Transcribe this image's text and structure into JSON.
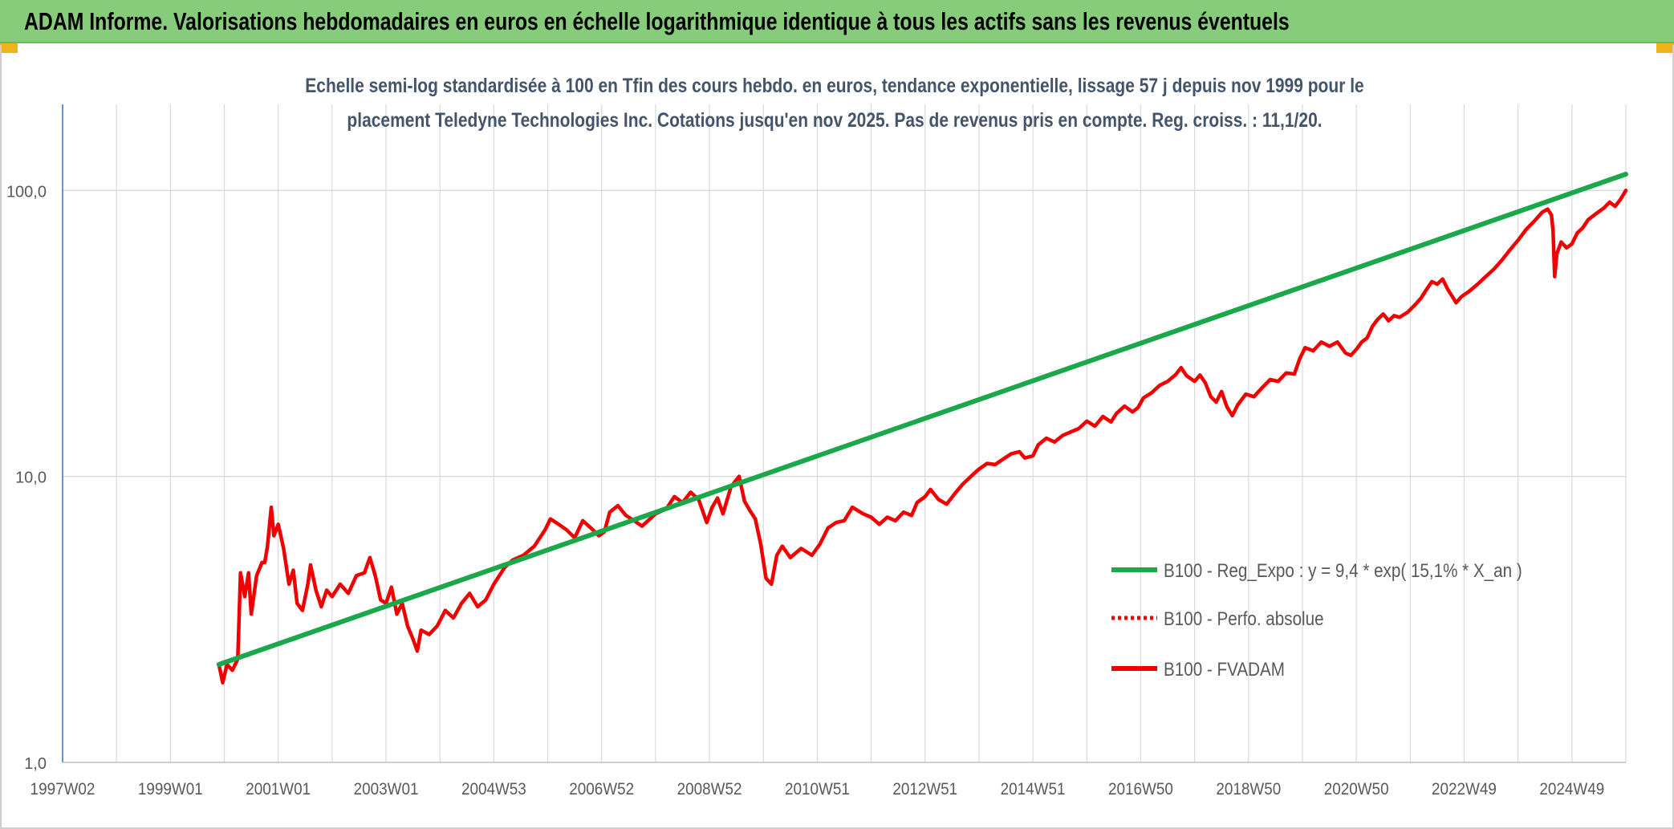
{
  "header": {
    "title": "ADAM Informe. Valorisations hebdomadaires en euros en échelle logarithmique identique à tous les actifs sans les revenus éventuels"
  },
  "colors": {
    "banner": "#86cc7a",
    "corner": "#f2b21b",
    "trend": "#1aa84a",
    "fvadam": "#f00000",
    "perfo": "#f00000",
    "grid": "#d9d9d9",
    "axis": "#4472c4"
  },
  "chart_data": {
    "type": "line",
    "title_lines": [
      "Echelle semi-log standardisée à 100 en Tfin des cours hebdo. en euros, tendance exponentielle, lissage 57 j depuis nov 1999 pour le",
      "placement Teledyne Technologies Inc. Cotations jusqu'en nov 2025. Pas de revenus pris en compte. Reg. croiss. : 11,1/20."
    ],
    "y_scale": "log",
    "ylim": [
      1,
      200
    ],
    "y_ticks": [
      {
        "value": 1,
        "label": "1,0"
      },
      {
        "value": 10,
        "label": "10,0"
      },
      {
        "value": 100,
        "label": "100,0"
      }
    ],
    "xlim": [
      1997.0,
      2026.0
    ],
    "x_ticks": [
      {
        "year": 1997.0,
        "label": "1997W02"
      },
      {
        "year": 1999.0,
        "label": "1999W01"
      },
      {
        "year": 2001.0,
        "label": "2001W01"
      },
      {
        "year": 2003.0,
        "label": "2003W01"
      },
      {
        "year": 2005.0,
        "label": "2004W53"
      },
      {
        "year": 2007.0,
        "label": "2006W52"
      },
      {
        "year": 2009.0,
        "label": "2008W52"
      },
      {
        "year": 2011.0,
        "label": "2010W51"
      },
      {
        "year": 2013.0,
        "label": "2012W51"
      },
      {
        "year": 2015.0,
        "label": "2014W51"
      },
      {
        "year": 2017.0,
        "label": "2016W50"
      },
      {
        "year": 2019.0,
        "label": "2018W50"
      },
      {
        "year": 2021.0,
        "label": "2020W50"
      },
      {
        "year": 2023.0,
        "label": "2022W49"
      },
      {
        "year": 2025.0,
        "label": "2024W49"
      }
    ],
    "legend_position": "right",
    "series": [
      {
        "name": "B100 - Reg_Expo : y = 9,4 * exp( 15,1% *  X_an )",
        "style": "solid",
        "color": "#1aa84a",
        "points": [
          [
            1999.9,
            2.2
          ],
          [
            2026.0,
            114
          ]
        ]
      },
      {
        "name": "B100 - Perfo. absolue",
        "style": "dotted",
        "color": "#f00000",
        "points": []
      },
      {
        "name": "B100 - FVADAM",
        "style": "solid",
        "color": "#f00000",
        "points": [
          [
            1999.9,
            2.2
          ],
          [
            1999.97,
            1.9
          ],
          [
            2000.05,
            2.2
          ],
          [
            2000.15,
            2.1
          ],
          [
            2000.25,
            2.3
          ],
          [
            2000.3,
            4.6
          ],
          [
            2000.38,
            3.8
          ],
          [
            2000.45,
            4.6
          ],
          [
            2000.5,
            3.3
          ],
          [
            2000.6,
            4.5
          ],
          [
            2000.7,
            5.0
          ],
          [
            2000.75,
            5.0
          ],
          [
            2000.8,
            5.7
          ],
          [
            2000.87,
            7.8
          ],
          [
            2000.92,
            6.2
          ],
          [
            2001.0,
            6.8
          ],
          [
            2001.1,
            5.6
          ],
          [
            2001.2,
            4.2
          ],
          [
            2001.28,
            4.7
          ],
          [
            2001.35,
            3.6
          ],
          [
            2001.45,
            3.4
          ],
          [
            2001.55,
            4.2
          ],
          [
            2001.6,
            4.9
          ],
          [
            2001.7,
            4.0
          ],
          [
            2001.8,
            3.5
          ],
          [
            2001.9,
            4.0
          ],
          [
            2002.0,
            3.8
          ],
          [
            2002.15,
            4.2
          ],
          [
            2002.3,
            3.9
          ],
          [
            2002.45,
            4.5
          ],
          [
            2002.6,
            4.6
          ],
          [
            2002.7,
            5.2
          ],
          [
            2002.8,
            4.5
          ],
          [
            2002.9,
            3.7
          ],
          [
            2003.0,
            3.6
          ],
          [
            2003.1,
            4.1
          ],
          [
            2003.2,
            3.3
          ],
          [
            2003.3,
            3.6
          ],
          [
            2003.4,
            3.0
          ],
          [
            2003.5,
            2.7
          ],
          [
            2003.58,
            2.45
          ],
          [
            2003.65,
            2.9
          ],
          [
            2003.8,
            2.8
          ],
          [
            2003.95,
            3.0
          ],
          [
            2004.1,
            3.4
          ],
          [
            2004.25,
            3.2
          ],
          [
            2004.4,
            3.6
          ],
          [
            2004.55,
            3.9
          ],
          [
            2004.7,
            3.5
          ],
          [
            2004.85,
            3.7
          ],
          [
            2005.0,
            4.2
          ],
          [
            2005.2,
            4.8
          ],
          [
            2005.35,
            5.1
          ],
          [
            2005.55,
            5.3
          ],
          [
            2005.75,
            5.7
          ],
          [
            2005.95,
            6.5
          ],
          [
            2006.05,
            7.1
          ],
          [
            2006.2,
            6.8
          ],
          [
            2006.35,
            6.5
          ],
          [
            2006.5,
            6.1
          ],
          [
            2006.65,
            7.0
          ],
          [
            2006.8,
            6.6
          ],
          [
            2006.95,
            6.2
          ],
          [
            2007.05,
            6.4
          ],
          [
            2007.15,
            7.5
          ],
          [
            2007.3,
            7.9
          ],
          [
            2007.45,
            7.3
          ],
          [
            2007.6,
            7.0
          ],
          [
            2007.75,
            6.7
          ],
          [
            2008.0,
            7.4
          ],
          [
            2008.2,
            7.7
          ],
          [
            2008.35,
            8.5
          ],
          [
            2008.5,
            8.1
          ],
          [
            2008.65,
            8.8
          ],
          [
            2008.8,
            8.3
          ],
          [
            2008.95,
            6.9
          ],
          [
            2009.05,
            7.8
          ],
          [
            2009.15,
            8.4
          ],
          [
            2009.25,
            7.4
          ],
          [
            2009.4,
            9.2
          ],
          [
            2009.55,
            10.0
          ],
          [
            2009.65,
            8.2
          ],
          [
            2009.75,
            7.6
          ],
          [
            2009.85,
            7.1
          ],
          [
            2009.95,
            5.8
          ],
          [
            2010.05,
            4.4
          ],
          [
            2010.15,
            4.2
          ],
          [
            2010.25,
            5.3
          ],
          [
            2010.35,
            5.7
          ],
          [
            2010.5,
            5.2
          ],
          [
            2010.7,
            5.6
          ],
          [
            2010.9,
            5.3
          ],
          [
            2011.05,
            5.8
          ],
          [
            2011.2,
            6.6
          ],
          [
            2011.35,
            6.9
          ],
          [
            2011.5,
            7.0
          ],
          [
            2011.65,
            7.8
          ],
          [
            2011.85,
            7.4
          ],
          [
            2012.0,
            7.2
          ],
          [
            2012.15,
            6.8
          ],
          [
            2012.3,
            7.2
          ],
          [
            2012.45,
            7.0
          ],
          [
            2012.6,
            7.5
          ],
          [
            2012.75,
            7.3
          ],
          [
            2012.85,
            8.1
          ],
          [
            2013.0,
            8.5
          ],
          [
            2013.1,
            9.0
          ],
          [
            2013.25,
            8.3
          ],
          [
            2013.4,
            8.0
          ],
          [
            2013.55,
            8.7
          ],
          [
            2013.7,
            9.4
          ],
          [
            2013.85,
            10.0
          ],
          [
            2014.0,
            10.6
          ],
          [
            2014.15,
            11.1
          ],
          [
            2014.3,
            11.0
          ],
          [
            2014.45,
            11.5
          ],
          [
            2014.6,
            12.0
          ],
          [
            2014.75,
            12.2
          ],
          [
            2014.85,
            11.6
          ],
          [
            2015.0,
            11.8
          ],
          [
            2015.1,
            12.9
          ],
          [
            2015.25,
            13.6
          ],
          [
            2015.4,
            13.2
          ],
          [
            2015.55,
            13.9
          ],
          [
            2015.7,
            14.3
          ],
          [
            2015.85,
            14.7
          ],
          [
            2016.0,
            15.6
          ],
          [
            2016.15,
            15.0
          ],
          [
            2016.3,
            16.2
          ],
          [
            2016.45,
            15.5
          ],
          [
            2016.55,
            16.6
          ],
          [
            2016.7,
            17.6
          ],
          [
            2016.85,
            16.8
          ],
          [
            2016.95,
            17.4
          ],
          [
            2017.05,
            18.8
          ],
          [
            2017.2,
            19.6
          ],
          [
            2017.35,
            20.8
          ],
          [
            2017.5,
            21.5
          ],
          [
            2017.65,
            22.7
          ],
          [
            2017.75,
            24.0
          ],
          [
            2017.85,
            22.5
          ],
          [
            2018.0,
            21.5
          ],
          [
            2018.1,
            22.6
          ],
          [
            2018.2,
            21.2
          ],
          [
            2018.3,
            19.0
          ],
          [
            2018.4,
            18.2
          ],
          [
            2018.5,
            19.8
          ],
          [
            2018.6,
            17.5
          ],
          [
            2018.7,
            16.3
          ],
          [
            2018.8,
            17.8
          ],
          [
            2018.95,
            19.4
          ],
          [
            2019.1,
            19.0
          ],
          [
            2019.25,
            20.4
          ],
          [
            2019.4,
            21.8
          ],
          [
            2019.55,
            21.5
          ],
          [
            2019.7,
            23.0
          ],
          [
            2019.85,
            22.8
          ],
          [
            2019.95,
            25.8
          ],
          [
            2020.05,
            28.2
          ],
          [
            2020.2,
            27.5
          ],
          [
            2020.35,
            29.5
          ],
          [
            2020.5,
            28.5
          ],
          [
            2020.65,
            29.5
          ],
          [
            2020.8,
            27.0
          ],
          [
            2020.9,
            26.5
          ],
          [
            2021.0,
            27.8
          ],
          [
            2021.1,
            29.5
          ],
          [
            2021.2,
            30.5
          ],
          [
            2021.3,
            33.5
          ],
          [
            2021.4,
            35.5
          ],
          [
            2021.5,
            37.0
          ],
          [
            2021.6,
            35.0
          ],
          [
            2021.7,
            36.5
          ],
          [
            2021.8,
            36.0
          ],
          [
            2021.95,
            37.5
          ],
          [
            2022.1,
            40.0
          ],
          [
            2022.2,
            42.0
          ],
          [
            2022.3,
            45.0
          ],
          [
            2022.4,
            48.0
          ],
          [
            2022.5,
            47.0
          ],
          [
            2022.6,
            49.0
          ],
          [
            2022.7,
            45.0
          ],
          [
            2022.8,
            42.0
          ],
          [
            2022.85,
            40.5
          ],
          [
            2022.95,
            42.5
          ],
          [
            2023.1,
            44.5
          ],
          [
            2023.25,
            47.0
          ],
          [
            2023.4,
            50.0
          ],
          [
            2023.55,
            53.0
          ],
          [
            2023.7,
            57.0
          ],
          [
            2023.85,
            62.0
          ],
          [
            2024.0,
            67.0
          ],
          [
            2024.15,
            73.0
          ],
          [
            2024.3,
            78.0
          ],
          [
            2024.45,
            84.0
          ],
          [
            2024.55,
            86.0
          ],
          [
            2024.62,
            82.0
          ],
          [
            2024.65,
            72.0
          ],
          [
            2024.68,
            50.0
          ],
          [
            2024.72,
            60.0
          ],
          [
            2024.8,
            66.0
          ],
          [
            2024.9,
            63.0
          ],
          [
            2025.0,
            65.0
          ],
          [
            2025.1,
            71.0
          ],
          [
            2025.2,
            74.0
          ],
          [
            2025.3,
            79.0
          ],
          [
            2025.45,
            83.0
          ],
          [
            2025.6,
            87.0
          ],
          [
            2025.7,
            91.0
          ],
          [
            2025.8,
            88.0
          ],
          [
            2025.9,
            93.0
          ],
          [
            2026.0,
            100.0
          ]
        ]
      }
    ]
  }
}
